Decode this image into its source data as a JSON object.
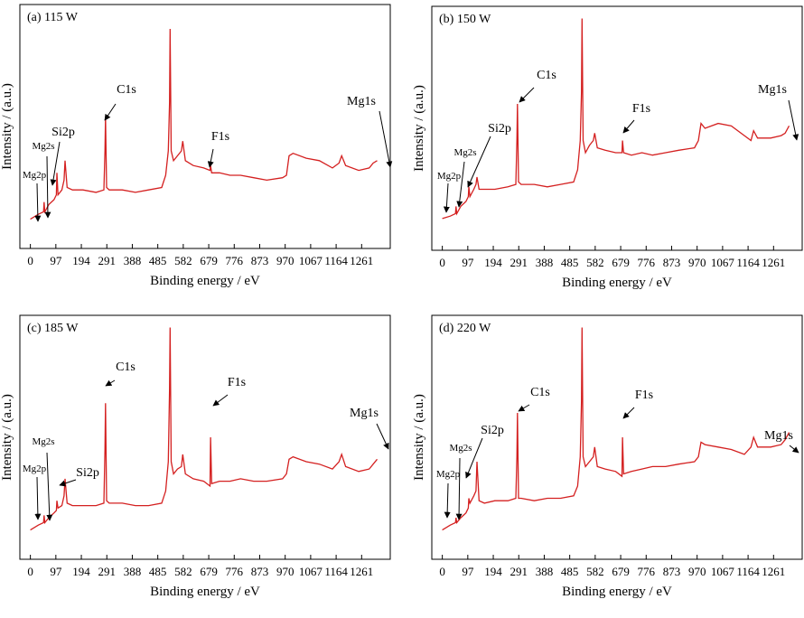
{
  "chart_data": [
    {
      "type": "line",
      "title": "(a) 115 W",
      "xlabel": "Binding energy / eV",
      "ylabel": "Intensity / (a.u.)",
      "color": "#d42020",
      "annotations": [
        "C1s",
        "F1s",
        "Mg1s",
        "Si2p",
        "Mg2s",
        "Mg2p"
      ],
      "xlim": [
        -40,
        1370
      ],
      "xticks": [
        0,
        97,
        194,
        291,
        388,
        485,
        582,
        679,
        776,
        873,
        970,
        1067,
        1164,
        1261
      ],
      "ylim": [
        0,
        100
      ],
      "x": [
        0,
        30,
        50,
        52,
        55,
        70,
        90,
        99,
        101,
        105,
        120,
        128,
        132,
        140,
        160,
        200,
        250,
        280,
        284,
        286,
        290,
        300,
        350,
        400,
        450,
        500,
        515,
        525,
        530,
        532,
        536,
        545,
        560,
        575,
        580,
        590,
        620,
        660,
        684,
        686,
        690,
        720,
        760,
        800,
        850,
        900,
        960,
        975,
        985,
        1000,
        1050,
        1100,
        1150,
        1175,
        1185,
        1200,
        1250,
        1290,
        1305,
        1320
      ],
      "values": [
        12,
        14,
        15,
        19,
        15,
        18,
        20,
        22,
        31,
        22,
        24,
        28,
        36,
        25,
        24,
        24,
        23,
        24,
        40,
        54,
        25,
        24,
        24,
        23,
        24,
        25,
        30,
        40,
        60,
        90,
        40,
        36,
        38,
        40,
        44,
        36,
        34,
        33,
        32,
        34,
        31,
        31,
        30,
        30,
        29,
        28,
        29,
        30,
        38,
        39,
        37,
        36,
        33,
        35,
        38,
        34,
        32,
        33,
        35,
        36
      ]
    },
    {
      "type": "line",
      "title": "(b) 150 W",
      "xlabel": "Binding energy / eV",
      "ylabel": "Intensity / (a.u.)",
      "color": "#d42020",
      "annotations": [
        "C1s",
        "F1s",
        "Mg1s",
        "Si2p",
        "Mg2s",
        "Mg2p"
      ],
      "xlim": [
        -40,
        1370
      ],
      "xticks": [
        0,
        97,
        194,
        291,
        388,
        485,
        582,
        679,
        776,
        873,
        970,
        1067,
        1164,
        1261
      ],
      "ylim": [
        0,
        100
      ],
      "x": [
        0,
        30,
        50,
        52,
        55,
        70,
        90,
        99,
        101,
        105,
        120,
        128,
        132,
        140,
        160,
        200,
        250,
        280,
        284,
        286,
        290,
        300,
        350,
        400,
        450,
        500,
        515,
        525,
        530,
        532,
        536,
        545,
        560,
        575,
        580,
        590,
        620,
        660,
        684,
        686,
        690,
        720,
        760,
        800,
        850,
        900,
        960,
        975,
        985,
        1000,
        1050,
        1100,
        1150,
        1175,
        1185,
        1200,
        1250,
        1290,
        1305,
        1320
      ],
      "values": [
        13,
        14,
        15,
        18,
        15,
        18,
        20,
        22,
        26,
        22,
        25,
        27,
        30,
        25,
        25,
        25,
        26,
        27,
        45,
        60,
        28,
        27,
        27,
        26,
        27,
        28,
        33,
        45,
        65,
        95,
        45,
        40,
        43,
        45,
        48,
        42,
        41,
        40,
        40,
        45,
        40,
        39,
        40,
        39,
        40,
        41,
        42,
        45,
        52,
        50,
        52,
        51,
        47,
        45,
        49,
        46,
        46,
        47,
        48,
        51
      ]
    },
    {
      "type": "line",
      "title": "(c) 185 W",
      "xlabel": "Binding energy / eV",
      "ylabel": "Intensity / (a.u.)",
      "color": "#d42020",
      "annotations": [
        "C1s",
        "F1s",
        "Mg1s",
        "Si2p",
        "Mg2s",
        "Mg2p"
      ],
      "xlim": [
        -40,
        1370
      ],
      "xticks": [
        0,
        97,
        194,
        291,
        388,
        485,
        582,
        679,
        776,
        873,
        970,
        1067,
        1164,
        1261
      ],
      "ylim": [
        0,
        100
      ],
      "x": [
        0,
        30,
        50,
        52,
        55,
        70,
        90,
        99,
        101,
        105,
        120,
        128,
        132,
        140,
        160,
        200,
        250,
        280,
        284,
        286,
        290,
        300,
        350,
        400,
        450,
        500,
        515,
        525,
        530,
        532,
        536,
        545,
        560,
        575,
        580,
        590,
        620,
        660,
        684,
        686,
        690,
        720,
        760,
        800,
        850,
        900,
        960,
        975,
        985,
        1000,
        1050,
        1100,
        1150,
        1175,
        1185,
        1200,
        1250,
        1290,
        1305,
        1320
      ],
      "values": [
        12,
        14,
        15,
        18,
        15,
        17,
        19,
        20,
        24,
        21,
        22,
        26,
        33,
        23,
        22,
        22,
        22,
        23,
        45,
        64,
        24,
        23,
        23,
        22,
        22,
        23,
        28,
        40,
        70,
        95,
        40,
        35,
        37,
        38,
        43,
        35,
        33,
        32,
        30,
        50,
        31,
        32,
        32,
        33,
        32,
        32,
        33,
        35,
        41,
        42,
        40,
        39,
        37,
        40,
        43,
        38,
        36,
        37,
        39,
        41
      ]
    },
    {
      "type": "line",
      "title": "(d) 220 W",
      "xlabel": "Binding energy / eV",
      "ylabel": "Intensity / (a.u.)",
      "color": "#d42020",
      "annotations": [
        "C1s",
        "F1s",
        "Mg1s",
        "Si2p",
        "Mg2s",
        "Mg2p"
      ],
      "xlim": [
        -40,
        1370
      ],
      "xticks": [
        0,
        97,
        194,
        291,
        388,
        485,
        582,
        679,
        776,
        873,
        970,
        1067,
        1164,
        1261
      ],
      "ylim": [
        0,
        100
      ],
      "x": [
        0,
        30,
        50,
        52,
        55,
        70,
        90,
        99,
        101,
        105,
        120,
        128,
        132,
        140,
        160,
        200,
        250,
        280,
        284,
        286,
        290,
        300,
        350,
        400,
        450,
        500,
        515,
        525,
        530,
        532,
        536,
        545,
        560,
        575,
        580,
        590,
        620,
        660,
        684,
        686,
        690,
        720,
        760,
        800,
        850,
        900,
        960,
        975,
        985,
        1000,
        1050,
        1100,
        1150,
        1175,
        1185,
        1200,
        1250,
        1290,
        1305,
        1320
      ],
      "values": [
        12,
        14,
        15,
        17,
        15,
        17,
        19,
        21,
        25,
        23,
        26,
        28,
        40,
        24,
        23,
        24,
        24,
        25,
        42,
        60,
        25,
        25,
        24,
        25,
        25,
        26,
        30,
        42,
        65,
        95,
        42,
        38,
        40,
        42,
        46,
        38,
        37,
        36,
        34,
        50,
        35,
        36,
        37,
        38,
        38,
        39,
        40,
        42,
        48,
        47,
        46,
        45,
        43,
        46,
        50,
        46,
        46,
        47,
        49,
        52
      ]
    }
  ]
}
